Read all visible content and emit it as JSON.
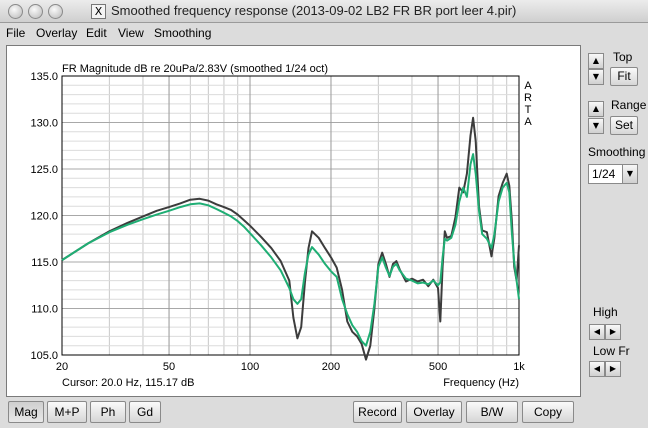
{
  "window": {
    "title": "Smoothed frequency response (2013-09-02 LB2 FR BR port leer 4.pir)",
    "app_icon": "X"
  },
  "menu": [
    "File",
    "Overlay",
    "Edit",
    "View",
    "Smoothing"
  ],
  "right_panel": {
    "top_label": "Top",
    "fit_button": "Fit",
    "range_label": "Range",
    "set_button": "Set",
    "smoothing_label": "Smoothing",
    "smoothing_value": "1/24",
    "high_label": "High",
    "lowfr_label": "Low Fr"
  },
  "bottom_buttons": {
    "mag": "Mag",
    "mp": "M+P",
    "ph": "Ph",
    "gd": "Gd",
    "record": "Record",
    "overlay": "Overlay",
    "bw": "B/W",
    "copy": "Copy"
  },
  "chart_data": {
    "type": "line",
    "title": "FR Magnitude dB re 20uPa/2.83V (smoothed 1/24 oct)",
    "watermark": "ARTA",
    "xlabel": "Frequency (Hz)",
    "cursor_text": "Cursor: 20.0 Hz, 115.17 dB",
    "xscale": "log",
    "xlim": [
      20,
      1000
    ],
    "ylim": [
      105,
      135
    ],
    "xticks": [
      20,
      50,
      100,
      200,
      500,
      1000
    ],
    "xtick_labels": [
      "20",
      "50",
      "100",
      "200",
      "500",
      "1k"
    ],
    "yticks": [
      105,
      110,
      115,
      120,
      125,
      130,
      135
    ],
    "ytick_labels": [
      "105.0",
      "110.0",
      "115.0",
      "120.0",
      "125.0",
      "130.0",
      "135.0"
    ],
    "grid": true,
    "series": [
      {
        "color": "#3c3c3c",
        "points": [
          [
            20,
            115.2
          ],
          [
            25,
            117
          ],
          [
            30,
            118.3
          ],
          [
            35,
            119.2
          ],
          [
            40,
            119.9
          ],
          [
            45,
            120.5
          ],
          [
            50,
            120.9
          ],
          [
            55,
            121.3
          ],
          [
            60,
            121.7
          ],
          [
            65,
            121.8
          ],
          [
            70,
            121.6
          ],
          [
            75,
            121.2
          ],
          [
            80,
            120.9
          ],
          [
            85,
            120.6
          ],
          [
            90,
            120.1
          ],
          [
            95,
            119.5
          ],
          [
            100,
            118.9
          ],
          [
            110,
            117.7
          ],
          [
            120,
            116.5
          ],
          [
            130,
            115.1
          ],
          [
            140,
            113
          ],
          [
            145,
            109
          ],
          [
            150,
            106.8
          ],
          [
            155,
            108
          ],
          [
            160,
            112.8
          ],
          [
            165,
            116.5
          ],
          [
            170,
            118.3
          ],
          [
            180,
            117.6
          ],
          [
            190,
            116.5
          ],
          [
            200,
            115.5
          ],
          [
            210,
            114.4
          ],
          [
            220,
            112
          ],
          [
            230,
            108.6
          ],
          [
            240,
            107.5
          ],
          [
            250,
            107
          ],
          [
            260,
            106.2
          ],
          [
            270,
            104.5
          ],
          [
            280,
            106
          ],
          [
            290,
            110
          ],
          [
            300,
            114.8
          ],
          [
            310,
            116
          ],
          [
            320,
            114.8
          ],
          [
            330,
            113.4
          ],
          [
            340,
            114.8
          ],
          [
            350,
            115.1
          ],
          [
            360,
            114.2
          ],
          [
            380,
            112.9
          ],
          [
            400,
            113.2
          ],
          [
            420,
            112.9
          ],
          [
            440,
            113.1
          ],
          [
            460,
            112.4
          ],
          [
            480,
            113.1
          ],
          [
            500,
            112.2
          ],
          [
            510,
            108.6
          ],
          [
            520,
            114.5
          ],
          [
            530,
            118.3
          ],
          [
            540,
            117.6
          ],
          [
            560,
            117.8
          ],
          [
            580,
            119.8
          ],
          [
            600,
            123
          ],
          [
            620,
            122.5
          ],
          [
            640,
            124.5
          ],
          [
            660,
            128.6
          ],
          [
            675,
            130.5
          ],
          [
            690,
            128
          ],
          [
            710,
            121
          ],
          [
            730,
            118.4
          ],
          [
            760,
            118.2
          ],
          [
            790,
            115.6
          ],
          [
            810,
            117.6
          ],
          [
            840,
            122.1
          ],
          [
            870,
            123.5
          ],
          [
            900,
            124.5
          ],
          [
            920,
            123.2
          ],
          [
            940,
            119.5
          ],
          [
            960,
            114.5
          ],
          [
            980,
            113
          ],
          [
            1000,
            116.8
          ]
        ]
      },
      {
        "color": "#1fae74",
        "points": [
          [
            20,
            115.2
          ],
          [
            25,
            117
          ],
          [
            30,
            118.2
          ],
          [
            35,
            119
          ],
          [
            40,
            119.6
          ],
          [
            45,
            120.1
          ],
          [
            50,
            120.5
          ],
          [
            55,
            120.9
          ],
          [
            60,
            121.2
          ],
          [
            65,
            121.3
          ],
          [
            70,
            121.1
          ],
          [
            75,
            120.7
          ],
          [
            80,
            120.3
          ],
          [
            85,
            119.9
          ],
          [
            90,
            119.4
          ],
          [
            95,
            118.8
          ],
          [
            100,
            118.1
          ],
          [
            110,
            116.8
          ],
          [
            120,
            115.5
          ],
          [
            130,
            114.1
          ],
          [
            140,
            112.2
          ],
          [
            145,
            111
          ],
          [
            150,
            110.5
          ],
          [
            155,
            111
          ],
          [
            160,
            113.8
          ],
          [
            165,
            115.8
          ],
          [
            170,
            116.6
          ],
          [
            180,
            115.8
          ],
          [
            190,
            114.8
          ],
          [
            200,
            114
          ],
          [
            210,
            113.4
          ],
          [
            220,
            111
          ],
          [
            230,
            109.4
          ],
          [
            240,
            108.2
          ],
          [
            250,
            107.5
          ],
          [
            260,
            106.5
          ],
          [
            270,
            106
          ],
          [
            280,
            107.5
          ],
          [
            290,
            110.5
          ],
          [
            300,
            114.5
          ],
          [
            310,
            115.5
          ],
          [
            320,
            114.4
          ],
          [
            330,
            113.5
          ],
          [
            340,
            114.5
          ],
          [
            350,
            114.8
          ],
          [
            360,
            114.1
          ],
          [
            380,
            113.2
          ],
          [
            400,
            113
          ],
          [
            420,
            112.7
          ],
          [
            440,
            112.8
          ],
          [
            460,
            112.6
          ],
          [
            480,
            113
          ],
          [
            500,
            112.5
          ],
          [
            510,
            112.8
          ],
          [
            520,
            115.5
          ],
          [
            530,
            117.5
          ],
          [
            540,
            117.3
          ],
          [
            560,
            117.6
          ],
          [
            580,
            119
          ],
          [
            600,
            121.5
          ],
          [
            620,
            123
          ],
          [
            640,
            122
          ],
          [
            660,
            125.5
          ],
          [
            675,
            126.6
          ],
          [
            690,
            124.5
          ],
          [
            710,
            120.5
          ],
          [
            730,
            118
          ],
          [
            760,
            117.5
          ],
          [
            790,
            116.5
          ],
          [
            810,
            118
          ],
          [
            840,
            121.5
          ],
          [
            870,
            123
          ],
          [
            900,
            123.5
          ],
          [
            920,
            122.5
          ],
          [
            940,
            118.2
          ],
          [
            960,
            115
          ],
          [
            980,
            113
          ],
          [
            1000,
            111
          ]
        ]
      }
    ]
  }
}
